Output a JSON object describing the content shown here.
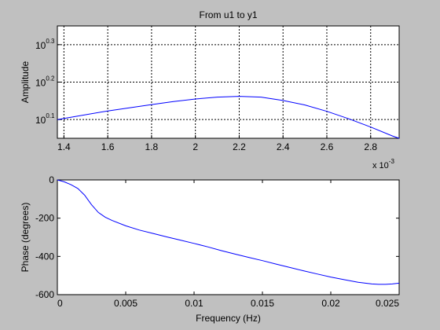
{
  "window": {
    "background": "#c0c0c0"
  },
  "chart_data": [
    {
      "type": "line",
      "title": "From u1 to y1",
      "xlabel": "",
      "ylabel": "Amplitude",
      "x_multiplier_label": {
        "base": "x 10",
        "exponent": "-3"
      },
      "xlim": [
        0.00137,
        0.00293
      ],
      "ylim_log10": [
        0.05,
        0.35
      ],
      "x_ticks": [
        0.0014,
        0.0016,
        0.0018,
        0.002,
        0.0022,
        0.0024,
        0.0026,
        0.0028
      ],
      "x_tick_labels": [
        "1.4",
        "1.6",
        "1.8",
        "2",
        "2.2",
        "2.4",
        "2.6",
        "2.8"
      ],
      "y_ticks_log10": [
        0.1,
        0.2,
        0.3
      ],
      "y_tick_labels": [
        {
          "base": "10",
          "exponent": "0.1"
        },
        {
          "base": "10",
          "exponent": "0.2"
        },
        {
          "base": "10",
          "exponent": "0.3"
        }
      ],
      "grid": true,
      "line_color": "#0000ff",
      "series": [
        {
          "x": [
            0.00137,
            0.0014,
            0.0016,
            0.0018,
            0.0019,
            0.002,
            0.0021,
            0.0022,
            0.0023,
            0.0024,
            0.0025,
            0.0026,
            0.0027,
            0.0028,
            0.0029,
            0.00293
          ],
          "log10_y": [
            0.1,
            0.103,
            0.123,
            0.14,
            0.148,
            0.155,
            0.16,
            0.162,
            0.16,
            0.151,
            0.139,
            0.122,
            0.102,
            0.08,
            0.056,
            0.05
          ]
        }
      ]
    },
    {
      "type": "line",
      "title": "",
      "xlabel": "Frequency (Hz)",
      "ylabel": "Phase (degrees)",
      "xlim": [
        0,
        0.025
      ],
      "ylim": [
        -600,
        0
      ],
      "x_ticks": [
        0,
        0.005,
        0.01,
        0.015,
        0.02,
        0.025
      ],
      "x_tick_labels": [
        "0",
        "0.005",
        "0.01",
        "0.015",
        "0.02",
        "0.025"
      ],
      "y_ticks": [
        -600,
        -400,
        -200,
        0
      ],
      "y_tick_labels": [
        "-600",
        "-400",
        "-200",
        "0"
      ],
      "grid": false,
      "line_color": "#0000ff",
      "series": [
        {
          "x": [
            0,
            0.0005,
            0.001,
            0.0015,
            0.002,
            0.0025,
            0.003,
            0.0035,
            0.004,
            0.005,
            0.006,
            0.007,
            0.008,
            0.009,
            0.01,
            0.011,
            0.012,
            0.013,
            0.014,
            0.015,
            0.016,
            0.017,
            0.018,
            0.019,
            0.02,
            0.021,
            0.022,
            0.023,
            0.0235,
            0.024,
            0.0245,
            0.025
          ],
          "y": [
            0,
            -10,
            -25,
            -45,
            -80,
            -130,
            -170,
            -195,
            -212,
            -240,
            -262,
            -280,
            -298,
            -315,
            -332,
            -350,
            -370,
            -388,
            -405,
            -422,
            -440,
            -458,
            -475,
            -492,
            -508,
            -522,
            -535,
            -544,
            -546,
            -546,
            -544,
            -540
          ]
        }
      ]
    }
  ]
}
